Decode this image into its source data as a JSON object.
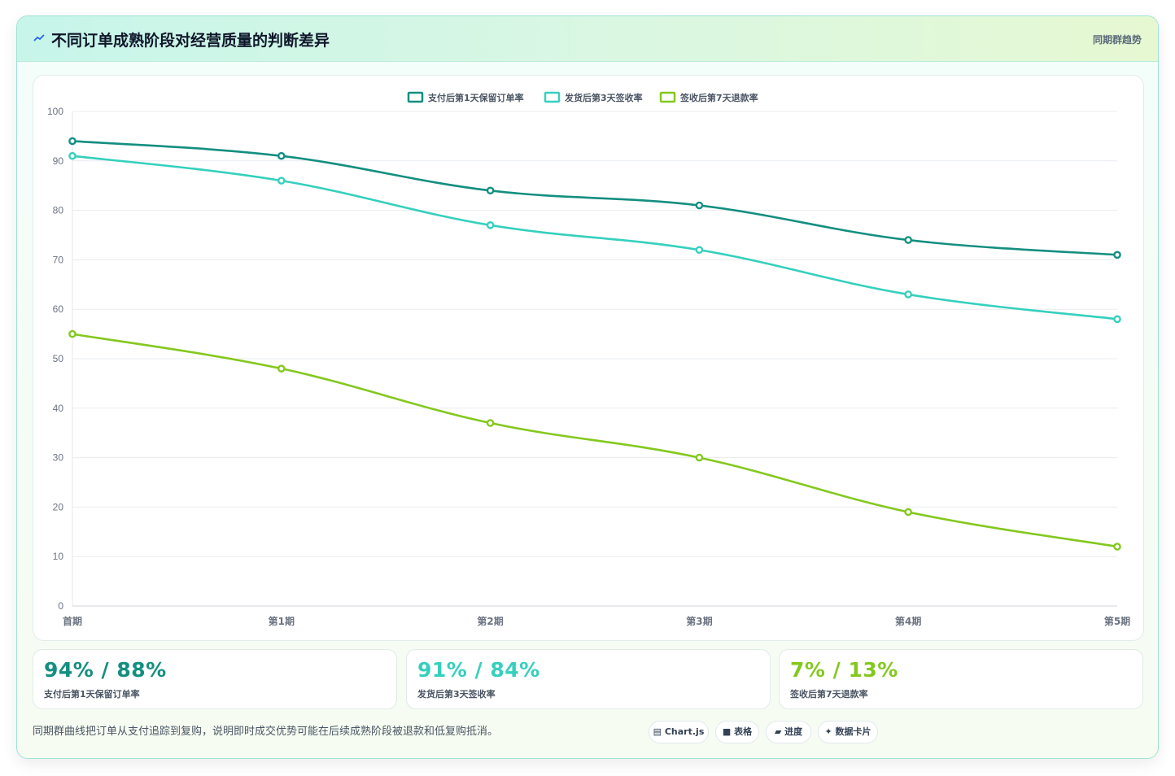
{
  "header": {
    "title": "不同订单成熟阶段对经营质量的判断差异",
    "tag": "同期群趋势"
  },
  "colors": {
    "series1": "#138f80",
    "series2": "#35d0bd",
    "series3": "#84c81f"
  },
  "chart_data": {
    "type": "line",
    "categories": [
      "首期",
      "第1期",
      "第2期",
      "第3期",
      "第4期",
      "第5期"
    ],
    "series": [
      {
        "name": "支付后第1天保留订单率",
        "values": [
          94,
          91,
          84,
          81,
          74,
          71
        ],
        "color": "#138f80"
      },
      {
        "name": "发货后第3天签收率",
        "values": [
          91,
          86,
          77,
          72,
          63,
          58
        ],
        "color": "#35d0bd"
      },
      {
        "name": "签收后第7天退款率",
        "values": [
          55,
          48,
          37,
          30,
          19,
          12
        ],
        "color": "#84c81f"
      }
    ],
    "ylim": [
      0,
      100
    ],
    "yticks": [
      0,
      10,
      20,
      30,
      40,
      50,
      60,
      70,
      80,
      90,
      100
    ],
    "grid": true,
    "legend": "top-center"
  },
  "kpis": [
    {
      "value": "94% / 88%",
      "label": "支付后第1天保留订单率",
      "color": "#138f80"
    },
    {
      "value": "91% / 84%",
      "label": "发货后第3天签收率",
      "color": "#35d0bd"
    },
    {
      "value": "7% / 13%",
      "label": "签收后第7天退款率",
      "color": "#84c81f"
    }
  ],
  "footer": {
    "note": "同期群曲线把订单从支付追踪到复购，说明即时成交优势可能在后续成熟阶段被退款和低复购抵消。",
    "pills": [
      {
        "icon": "▤",
        "label": "Chart.js"
      },
      {
        "icon": "■",
        "label": "表格"
      },
      {
        "icon": "▰",
        "label": "进度"
      },
      {
        "icon": "✦",
        "label": "数据卡片"
      }
    ]
  }
}
